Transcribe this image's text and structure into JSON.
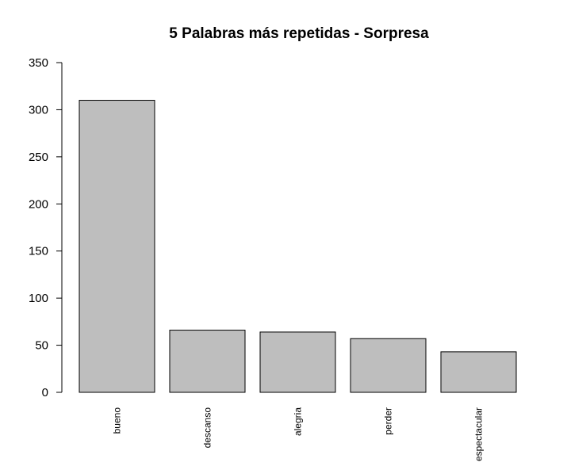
{
  "chart_data": {
    "type": "bar",
    "title": "5 Palabras más repetidas - Sorpresa",
    "xlabel": "",
    "ylabel": "",
    "categories": [
      "bueno",
      "descanso",
      "alegria",
      "perder",
      "espectacular"
    ],
    "values": [
      310,
      66,
      64,
      57,
      43
    ],
    "ylim": [
      0,
      350
    ],
    "yticks": [
      "0",
      "50",
      "100",
      "150",
      "200",
      "250",
      "300",
      "350"
    ],
    "bar_color": "#bebebe",
    "grid": false
  }
}
